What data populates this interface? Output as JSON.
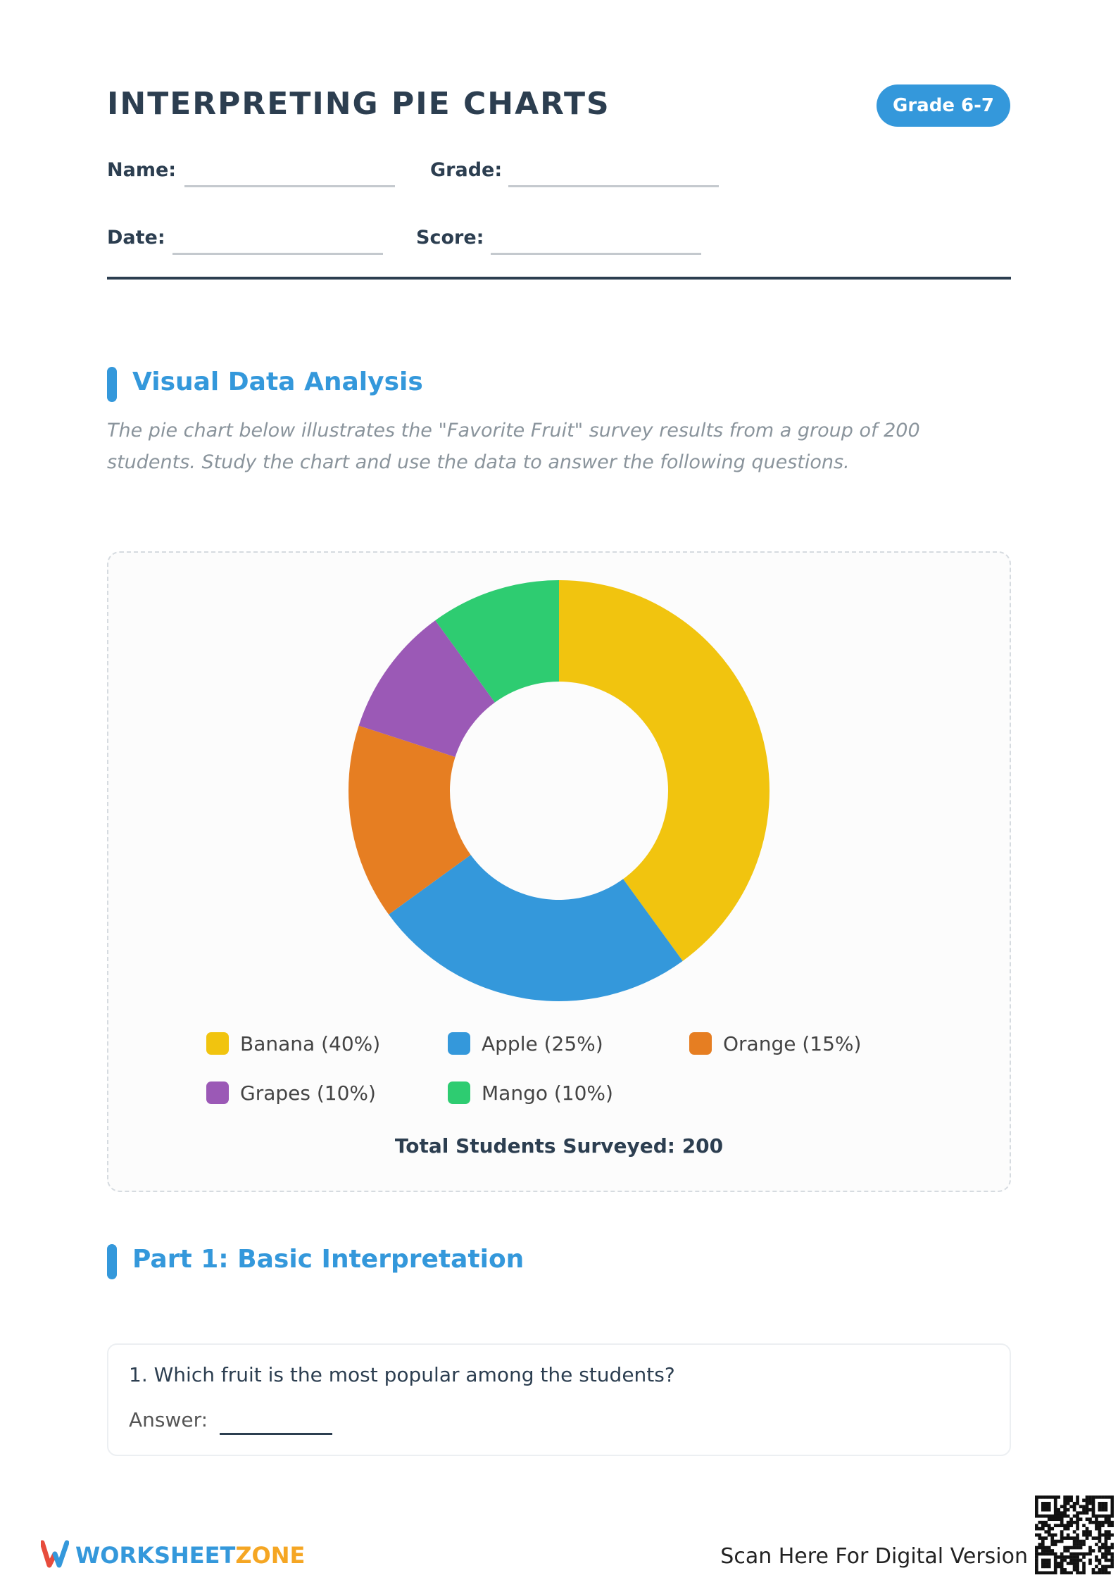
{
  "header": {
    "title": "INTERPRETING PIE CHARTS",
    "badge": "Grade 6-7",
    "fields": [
      "Name:",
      "Grade:",
      "Date:",
      "Score:"
    ]
  },
  "section_1": {
    "heading": "Visual Data Analysis",
    "description": [
      "The pie chart below illustrates the \"Favorite Fruit\" survey results from a group of 200",
      "students. Study the chart and use the data to answer the following questions."
    ]
  },
  "chart_data": {
    "type": "donut",
    "categories": [
      "Banana (40%)",
      "Apple (25%)",
      "Orange (15%)",
      "Grapes (10%)",
      "Mango (10%)"
    ],
    "values": [
      40,
      25,
      15,
      10,
      10
    ],
    "colors": [
      "#f1c40f",
      "#3498db",
      "#e67e22",
      "#9b59b6",
      "#2ecc71"
    ],
    "note": "Total Students Surveyed: 200"
  },
  "section_2": {
    "heading": "Part 1: Basic Interpretation",
    "question": "1. Which fruit is the most popular among the students?",
    "answer_label": "Answer:"
  },
  "footer": {
    "brand_1": "WORKSHEET",
    "brand_2": "ZONE",
    "scan": "Scan Here For Digital Version"
  }
}
